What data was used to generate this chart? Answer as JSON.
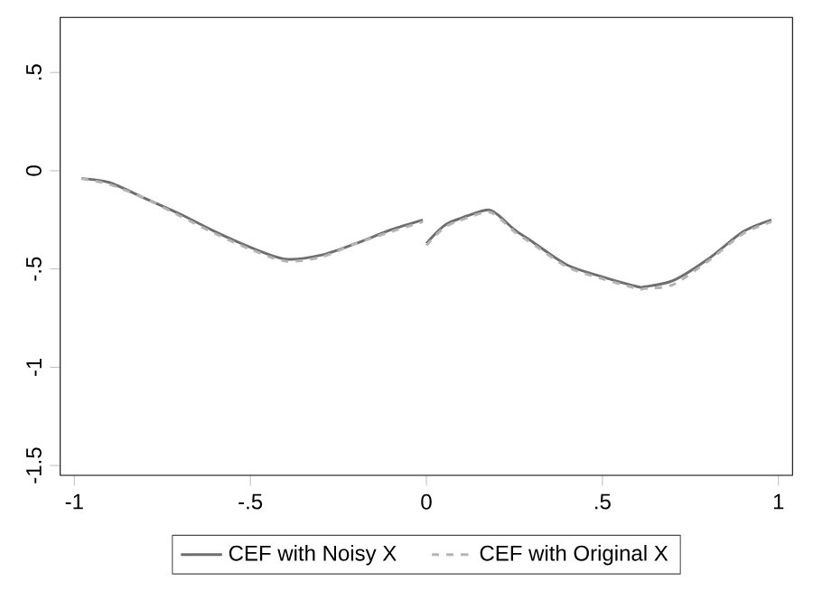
{
  "chart_data": {
    "type": "line",
    "xlim": [
      -1.04,
      1.04
    ],
    "ylim": [
      -1.55,
      0.78
    ],
    "xticks": [
      {
        "value": -1,
        "label": "-1"
      },
      {
        "value": -0.5,
        "label": "-.5"
      },
      {
        "value": 0,
        "label": "0"
      },
      {
        "value": 0.5,
        "label": ".5"
      },
      {
        "value": 1,
        "label": "1"
      }
    ],
    "yticks": [
      {
        "value": -1.5,
        "label": "-1.5"
      },
      {
        "value": -1,
        "label": "-1"
      },
      {
        "value": -0.5,
        "label": "-.5"
      },
      {
        "value": 0,
        "label": "0"
      },
      {
        "value": 0.5,
        "label": ".5"
      }
    ],
    "grid": false,
    "legend": "bottom",
    "marker": "none",
    "series": [
      {
        "name": "CEF with Noisy X",
        "color": "#6e6e6e",
        "line_style": "solid",
        "x": [
          -0.98,
          -0.9,
          -0.8,
          -0.7,
          -0.6,
          -0.5,
          -0.4,
          -0.3,
          -0.2,
          -0.1,
          -0.01,
          null,
          0.0,
          0.05,
          0.1,
          0.17,
          0.2,
          0.25,
          0.3,
          0.4,
          0.5,
          0.6,
          0.62,
          0.7,
          0.8,
          0.9,
          0.98
        ],
        "values": [
          -0.04,
          -0.06,
          -0.14,
          -0.22,
          -0.31,
          -0.39,
          -0.45,
          -0.43,
          -0.37,
          -0.3,
          -0.25,
          null,
          -0.37,
          -0.28,
          -0.24,
          -0.2,
          -0.22,
          -0.3,
          -0.36,
          -0.48,
          -0.54,
          -0.59,
          -0.59,
          -0.56,
          -0.45,
          -0.31,
          -0.25
        ]
      },
      {
        "name": "CEF with Original X",
        "color": "#b4b4b4",
        "line_style": "dashed",
        "x": [
          -0.98,
          -0.9,
          -0.8,
          -0.7,
          -0.6,
          -0.5,
          -0.4,
          -0.3,
          -0.2,
          -0.1,
          -0.01,
          null,
          0.0,
          0.05,
          0.1,
          0.17,
          0.2,
          0.25,
          0.3,
          0.4,
          0.5,
          0.6,
          0.62,
          0.7,
          0.8,
          0.9,
          0.98
        ],
        "values": [
          -0.04,
          -0.07,
          -0.14,
          -0.23,
          -0.32,
          -0.4,
          -0.46,
          -0.44,
          -0.37,
          -0.31,
          -0.26,
          null,
          -0.38,
          -0.29,
          -0.25,
          -0.21,
          -0.23,
          -0.31,
          -0.37,
          -0.49,
          -0.55,
          -0.6,
          -0.6,
          -0.58,
          -0.46,
          -0.32,
          -0.26
        ]
      }
    ]
  }
}
